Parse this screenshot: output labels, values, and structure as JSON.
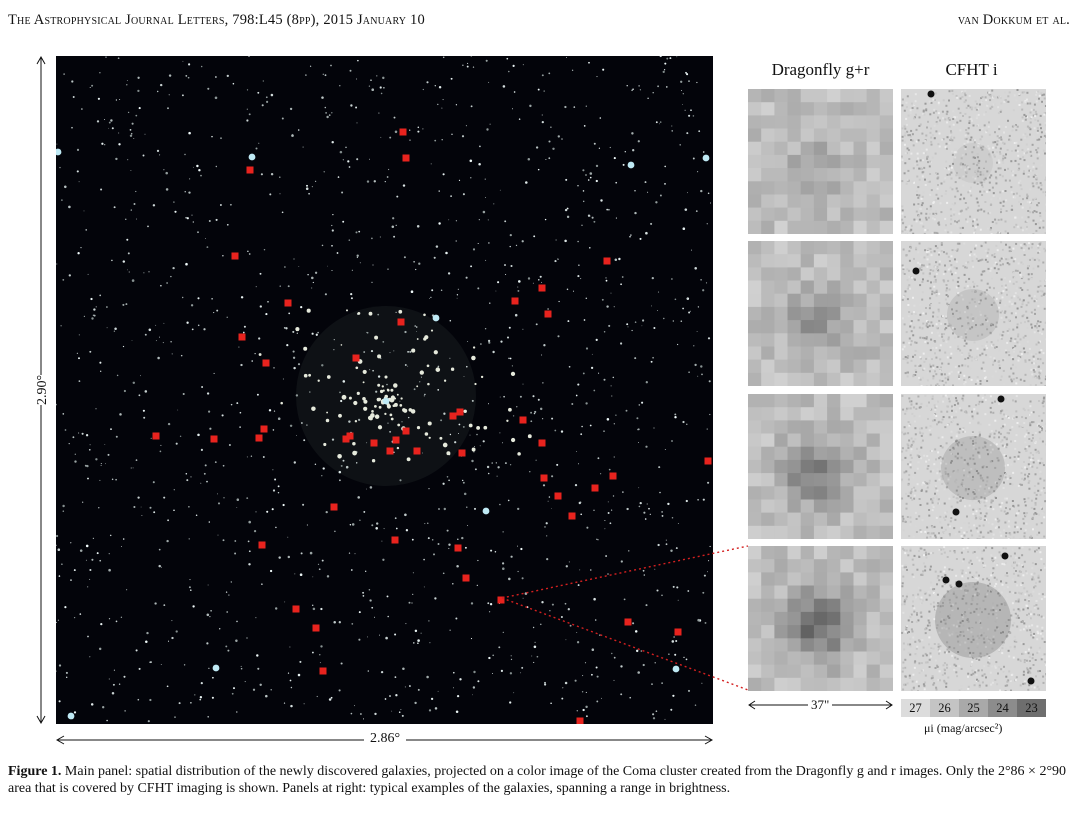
{
  "header": {
    "journal": "The Astrophysical Journal Letters, 798:L45 (8pp), 2015 January 10",
    "authors": "van Dokkum et al."
  },
  "main_panel": {
    "height_label": "2.90°",
    "width_label": "2.86°",
    "marker_color": "#e8231e",
    "marker_count": 50
  },
  "stamps": {
    "dragonfly_title": "Dragonfly g+r",
    "cfht_title": "CFHT i",
    "scale_label": "37\"",
    "colorbar": {
      "ticks": [
        "27",
        "26",
        "25",
        "24",
        "23"
      ],
      "label": "μi (mag/arcsec²)"
    }
  },
  "caption": {
    "label": "Figure 1.",
    "text": "Main panel: spatial distribution of the newly discovered galaxies, projected on a color image of the Coma cluster created from the Dragonfly g and r images. Only the 2°86 × 2°90 area that is covered by CFHT imaging is shown. Panels at right: typical examples of the galaxies, spanning a range in brightness."
  }
}
